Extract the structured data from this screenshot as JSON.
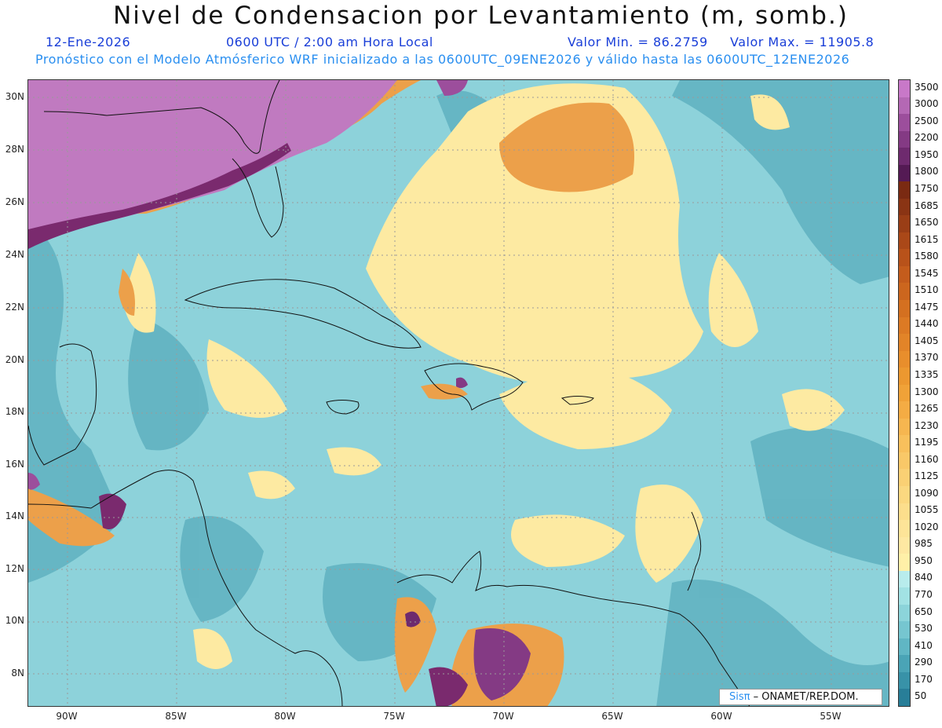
{
  "title": "Nivel de Condensacion por Levantamiento (m, somb.)",
  "header": {
    "date": "12-Ene-2026",
    "time": "0600 UTC / 2:00 am Hora Local",
    "min_label": "Valor Min. = 86.2759",
    "max_label": "Valor Max. = 11905.8",
    "subtitle": "Pronóstico con el Modelo Atmósferico WRF inicializado a las 0600UTC_09ENE2026 y válido hasta las  0600UTC_12ENE2026"
  },
  "axes": {
    "lat_labels": [
      "30N",
      "28N",
      "26N",
      "24N",
      "22N",
      "20N",
      "18N",
      "16N",
      "14N",
      "12N",
      "10N",
      "8N"
    ],
    "lon_labels": [
      "90W",
      "85W",
      "80W",
      "75W",
      "70W",
      "65W",
      "60W",
      "55W"
    ]
  },
  "legend": {
    "levels": [
      "3500",
      "3000",
      "2500",
      "2200",
      "1950",
      "1800",
      "1750",
      "1685",
      "1650",
      "1615",
      "1580",
      "1545",
      "1510",
      "1475",
      "1440",
      "1405",
      "1370",
      "1335",
      "1300",
      "1265",
      "1230",
      "1195",
      "1160",
      "1125",
      "1090",
      "1055",
      "1020",
      "985",
      "950",
      "840",
      "770",
      "650",
      "530",
      "410",
      "290",
      "170",
      "50"
    ],
    "colors": [
      "#c878c8",
      "#b468b4",
      "#9c4e9c",
      "#843a84",
      "#6e2a6e",
      "#541a54",
      "#7a2a12",
      "#8a3414",
      "#9a3e16",
      "#aa4818",
      "#b8521a",
      "#c45c1c",
      "#cc661e",
      "#d47020",
      "#dc7a24",
      "#e28428",
      "#e88e2c",
      "#ec9830",
      "#f0a238",
      "#f4ac44",
      "#f6b650",
      "#f8c05c",
      "#f9c868",
      "#fad074",
      "#fbd880",
      "#fcde8c",
      "#fde498",
      "#fee8a2",
      "#fff0a8",
      "#b8ecec",
      "#a2e2e4",
      "#8cd4da",
      "#76c6d0",
      "#60b6c4",
      "#4aa4b6",
      "#3892a8",
      "#287e98"
    ]
  },
  "credit": {
    "brand": "Sisπ",
    "org": " – ONAMET/REP.DOM."
  }
}
